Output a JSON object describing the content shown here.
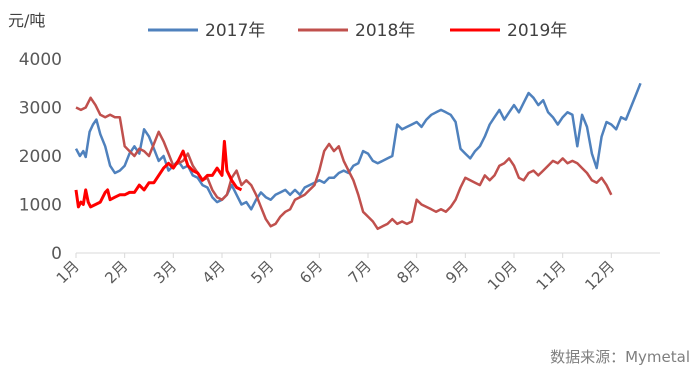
{
  "chart_data": {
    "type": "line",
    "unit_label": "元/吨",
    "source": "数据来源：Mymetal",
    "ylim": [
      0,
      4000
    ],
    "yticks": [
      "0",
      "1000",
      "2000",
      "3000",
      "4000"
    ],
    "xlim": [
      0,
      12
    ],
    "categories": [
      "1月",
      "2月",
      "3月",
      "4月",
      "5月",
      "6月",
      "7月",
      "8月",
      "9月",
      "10月",
      "11月",
      "12月"
    ],
    "legend_position": "top",
    "grid": false,
    "series": [
      {
        "name": "2017年",
        "color": "#4F81BD",
        "points": [
          [
            0.0,
            2150
          ],
          [
            0.08,
            2000
          ],
          [
            0.15,
            2100
          ],
          [
            0.2,
            1980
          ],
          [
            0.28,
            2500
          ],
          [
            0.35,
            2650
          ],
          [
            0.42,
            2750
          ],
          [
            0.5,
            2450
          ],
          [
            0.6,
            2200
          ],
          [
            0.7,
            1800
          ],
          [
            0.8,
            1650
          ],
          [
            0.9,
            1700
          ],
          [
            1.0,
            1800
          ],
          [
            1.1,
            2050
          ],
          [
            1.2,
            2200
          ],
          [
            1.3,
            2050
          ],
          [
            1.4,
            2550
          ],
          [
            1.5,
            2400
          ],
          [
            1.6,
            2150
          ],
          [
            1.7,
            1900
          ],
          [
            1.8,
            2000
          ],
          [
            1.9,
            1700
          ],
          [
            2.0,
            1800
          ],
          [
            2.1,
            1900
          ],
          [
            2.2,
            1750
          ],
          [
            2.3,
            1800
          ],
          [
            2.4,
            1600
          ],
          [
            2.5,
            1550
          ],
          [
            2.6,
            1400
          ],
          [
            2.7,
            1350
          ],
          [
            2.8,
            1150
          ],
          [
            2.9,
            1050
          ],
          [
            3.0,
            1100
          ],
          [
            3.1,
            1200
          ],
          [
            3.2,
            1400
          ],
          [
            3.3,
            1200
          ],
          [
            3.4,
            1000
          ],
          [
            3.5,
            1050
          ],
          [
            3.6,
            900
          ],
          [
            3.7,
            1100
          ],
          [
            3.8,
            1250
          ],
          [
            3.9,
            1150
          ],
          [
            4.0,
            1100
          ],
          [
            4.1,
            1200
          ],
          [
            4.2,
            1250
          ],
          [
            4.3,
            1300
          ],
          [
            4.4,
            1200
          ],
          [
            4.5,
            1300
          ],
          [
            4.6,
            1200
          ],
          [
            4.7,
            1350
          ],
          [
            4.8,
            1400
          ],
          [
            4.9,
            1450
          ],
          [
            5.0,
            1500
          ],
          [
            5.1,
            1450
          ],
          [
            5.2,
            1550
          ],
          [
            5.3,
            1550
          ],
          [
            5.4,
            1650
          ],
          [
            5.5,
            1700
          ],
          [
            5.6,
            1650
          ],
          [
            5.7,
            1800
          ],
          [
            5.8,
            1850
          ],
          [
            5.9,
            2100
          ],
          [
            6.0,
            2050
          ],
          [
            6.1,
            1900
          ],
          [
            6.2,
            1850
          ],
          [
            6.3,
            1900
          ],
          [
            6.4,
            1950
          ],
          [
            6.5,
            2000
          ],
          [
            6.6,
            2650
          ],
          [
            6.7,
            2550
          ],
          [
            6.8,
            2600
          ],
          [
            6.9,
            2650
          ],
          [
            7.0,
            2700
          ],
          [
            7.1,
            2600
          ],
          [
            7.2,
            2750
          ],
          [
            7.3,
            2850
          ],
          [
            7.4,
            2900
          ],
          [
            7.5,
            2950
          ],
          [
            7.6,
            2900
          ],
          [
            7.7,
            2850
          ],
          [
            7.8,
            2700
          ],
          [
            7.9,
            2150
          ],
          [
            8.0,
            2050
          ],
          [
            8.1,
            1950
          ],
          [
            8.2,
            2100
          ],
          [
            8.3,
            2200
          ],
          [
            8.4,
            2400
          ],
          [
            8.5,
            2650
          ],
          [
            8.6,
            2800
          ],
          [
            8.7,
            2950
          ],
          [
            8.8,
            2750
          ],
          [
            8.9,
            2900
          ],
          [
            9.0,
            3050
          ],
          [
            9.1,
            2900
          ],
          [
            9.2,
            3100
          ],
          [
            9.3,
            3300
          ],
          [
            9.4,
            3200
          ],
          [
            9.5,
            3050
          ],
          [
            9.6,
            3150
          ],
          [
            9.7,
            2900
          ],
          [
            9.8,
            2800
          ],
          [
            9.9,
            2650
          ],
          [
            10.0,
            2800
          ],
          [
            10.1,
            2900
          ],
          [
            10.2,
            2850
          ],
          [
            10.3,
            2200
          ],
          [
            10.4,
            2850
          ],
          [
            10.5,
            2600
          ],
          [
            10.6,
            2050
          ],
          [
            10.7,
            1750
          ],
          [
            10.8,
            2400
          ],
          [
            10.9,
            2700
          ],
          [
            11.0,
            2650
          ],
          [
            11.1,
            2550
          ],
          [
            11.2,
            2800
          ],
          [
            11.3,
            2750
          ],
          [
            11.4,
            3000
          ],
          [
            11.5,
            3250
          ],
          [
            11.6,
            3500
          ]
        ]
      },
      {
        "name": "2018年",
        "color": "#C0504D",
        "points": [
          [
            0.0,
            3000
          ],
          [
            0.1,
            2950
          ],
          [
            0.2,
            3000
          ],
          [
            0.3,
            3200
          ],
          [
            0.4,
            3050
          ],
          [
            0.5,
            2850
          ],
          [
            0.6,
            2800
          ],
          [
            0.7,
            2850
          ],
          [
            0.8,
            2800
          ],
          [
            0.9,
            2800
          ],
          [
            1.0,
            2200
          ],
          [
            1.1,
            2100
          ],
          [
            1.2,
            2000
          ],
          [
            1.3,
            2150
          ],
          [
            1.4,
            2100
          ],
          [
            1.5,
            2000
          ],
          [
            1.6,
            2250
          ],
          [
            1.7,
            2500
          ],
          [
            1.8,
            2300
          ],
          [
            1.9,
            2050
          ],
          [
            2.0,
            1800
          ],
          [
            2.1,
            1850
          ],
          [
            2.2,
            1900
          ],
          [
            2.3,
            2050
          ],
          [
            2.4,
            1800
          ],
          [
            2.5,
            1650
          ],
          [
            2.6,
            1500
          ],
          [
            2.7,
            1550
          ],
          [
            2.8,
            1300
          ],
          [
            2.9,
            1150
          ],
          [
            3.0,
            1100
          ],
          [
            3.1,
            1200
          ],
          [
            3.2,
            1550
          ],
          [
            3.3,
            1700
          ],
          [
            3.4,
            1400
          ],
          [
            3.5,
            1500
          ],
          [
            3.6,
            1400
          ],
          [
            3.7,
            1200
          ],
          [
            3.8,
            950
          ],
          [
            3.9,
            700
          ],
          [
            4.0,
            550
          ],
          [
            4.1,
            600
          ],
          [
            4.2,
            750
          ],
          [
            4.3,
            850
          ],
          [
            4.4,
            900
          ],
          [
            4.5,
            1100
          ],
          [
            4.6,
            1150
          ],
          [
            4.7,
            1200
          ],
          [
            4.8,
            1300
          ],
          [
            4.9,
            1400
          ],
          [
            5.0,
            1700
          ],
          [
            5.1,
            2100
          ],
          [
            5.2,
            2250
          ],
          [
            5.3,
            2100
          ],
          [
            5.4,
            2200
          ],
          [
            5.5,
            1900
          ],
          [
            5.6,
            1700
          ],
          [
            5.7,
            1500
          ],
          [
            5.8,
            1200
          ],
          [
            5.9,
            850
          ],
          [
            6.0,
            750
          ],
          [
            6.1,
            650
          ],
          [
            6.2,
            500
          ],
          [
            6.3,
            550
          ],
          [
            6.4,
            600
          ],
          [
            6.5,
            700
          ],
          [
            6.6,
            600
          ],
          [
            6.7,
            650
          ],
          [
            6.8,
            600
          ],
          [
            6.9,
            650
          ],
          [
            7.0,
            1100
          ],
          [
            7.1,
            1000
          ],
          [
            7.2,
            950
          ],
          [
            7.3,
            900
          ],
          [
            7.4,
            850
          ],
          [
            7.5,
            900
          ],
          [
            7.6,
            850
          ],
          [
            7.7,
            950
          ],
          [
            7.8,
            1100
          ],
          [
            7.9,
            1350
          ],
          [
            8.0,
            1550
          ],
          [
            8.1,
            1500
          ],
          [
            8.2,
            1450
          ],
          [
            8.3,
            1400
          ],
          [
            8.4,
            1600
          ],
          [
            8.5,
            1500
          ],
          [
            8.6,
            1600
          ],
          [
            8.7,
            1800
          ],
          [
            8.8,
            1850
          ],
          [
            8.9,
            1950
          ],
          [
            9.0,
            1800
          ],
          [
            9.1,
            1550
          ],
          [
            9.2,
            1500
          ],
          [
            9.3,
            1650
          ],
          [
            9.4,
            1700
          ],
          [
            9.5,
            1600
          ],
          [
            9.6,
            1700
          ],
          [
            9.7,
            1800
          ],
          [
            9.8,
            1900
          ],
          [
            9.9,
            1850
          ],
          [
            10.0,
            1950
          ],
          [
            10.1,
            1850
          ],
          [
            10.2,
            1900
          ],
          [
            10.3,
            1850
          ],
          [
            10.4,
            1750
          ],
          [
            10.5,
            1650
          ],
          [
            10.6,
            1500
          ],
          [
            10.7,
            1450
          ],
          [
            10.8,
            1550
          ],
          [
            10.9,
            1400
          ],
          [
            11.0,
            1200
          ]
        ]
      },
      {
        "name": "2019年",
        "color": "#FF0000",
        "points": [
          [
            0.0,
            1300
          ],
          [
            0.05,
            950
          ],
          [
            0.1,
            1050
          ],
          [
            0.15,
            1000
          ],
          [
            0.2,
            1300
          ],
          [
            0.25,
            1050
          ],
          [
            0.3,
            950
          ],
          [
            0.4,
            1000
          ],
          [
            0.5,
            1050
          ],
          [
            0.6,
            1250
          ],
          [
            0.65,
            1300
          ],
          [
            0.7,
            1100
          ],
          [
            0.8,
            1150
          ],
          [
            0.9,
            1200
          ],
          [
            1.0,
            1200
          ],
          [
            1.1,
            1250
          ],
          [
            1.2,
            1250
          ],
          [
            1.3,
            1400
          ],
          [
            1.4,
            1300
          ],
          [
            1.5,
            1450
          ],
          [
            1.6,
            1450
          ],
          [
            1.7,
            1600
          ],
          [
            1.8,
            1750
          ],
          [
            1.9,
            1850
          ],
          [
            2.0,
            1750
          ],
          [
            2.1,
            1900
          ],
          [
            2.2,
            2100
          ],
          [
            2.3,
            1800
          ],
          [
            2.4,
            1700
          ],
          [
            2.5,
            1650
          ],
          [
            2.6,
            1500
          ],
          [
            2.7,
            1600
          ],
          [
            2.8,
            1600
          ],
          [
            2.9,
            1750
          ],
          [
            3.0,
            1600
          ],
          [
            3.05,
            2300
          ],
          [
            3.1,
            1700
          ],
          [
            3.2,
            1500
          ],
          [
            3.3,
            1350
          ],
          [
            3.4,
            1300
          ]
        ]
      }
    ]
  }
}
